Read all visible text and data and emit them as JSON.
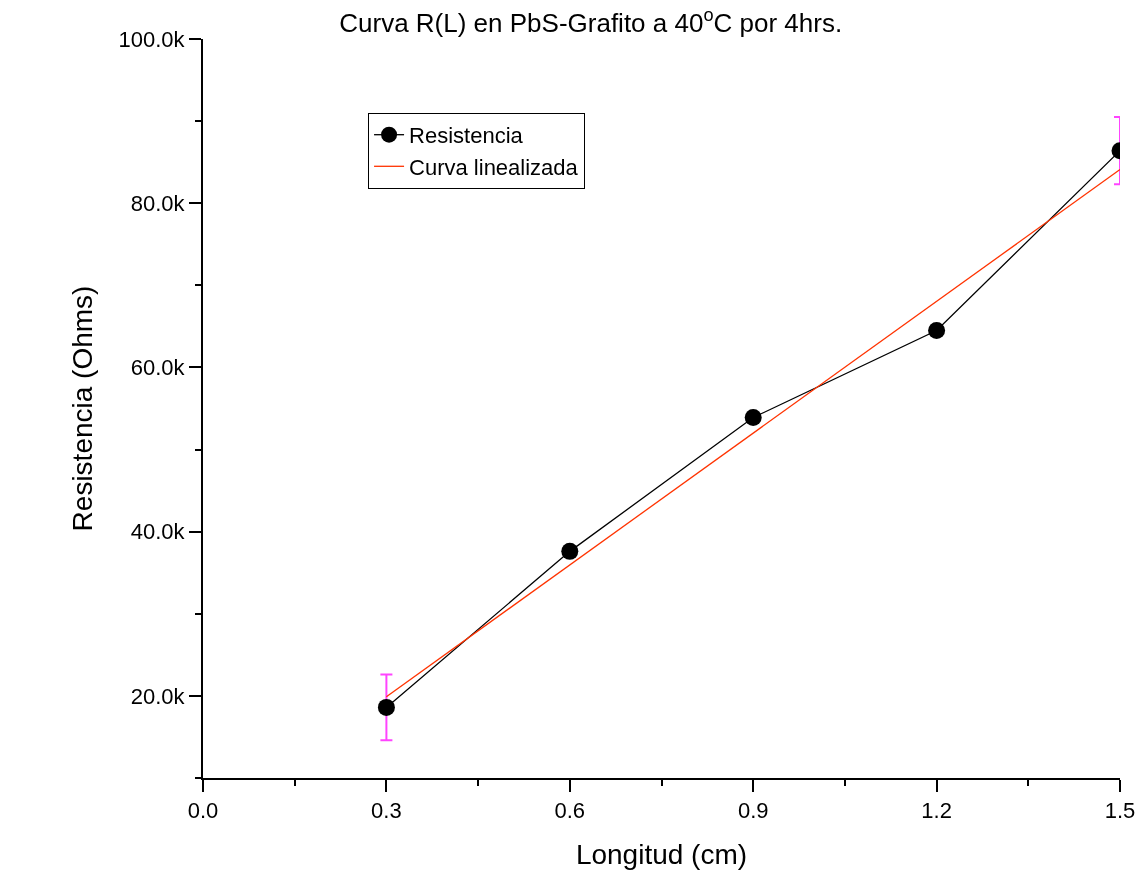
{
  "chart_data": {
    "type": "line",
    "title": "Curva R(L) en PbS-Grafito a 40$^{o}$C por 4hrs.",
    "xlabel": "Longitud (cm)",
    "ylabel": "Resistencia (Ohms)",
    "x": [
      0.3,
      0.6,
      0.9,
      1.2,
      1.5
    ],
    "series": [
      {
        "name": "Resistencia",
        "color": "#000000",
        "values": [
          18600,
          37600,
          53900,
          64500,
          86400
        ],
        "errors": [
          4000,
          null,
          null,
          null,
          4100
        ],
        "marker": "circle"
      },
      {
        "name": "Curva linealizada",
        "type": "line",
        "color": "#ff3300",
        "x": [
          0.3,
          1.5
        ],
        "values": [
          19900,
          84100
        ],
        "marker": "none"
      }
    ],
    "xlim": [
      0,
      1.5
    ],
    "xticks": [
      {
        "value": 0,
        "label": "0.0"
      },
      0.3,
      0.6,
      0.9,
      1.2,
      1.5
    ],
    "ylim": [
      10000,
      100000
    ],
    "yticks": [
      {
        "value": 20000,
        "label": "20.0k"
      },
      {
        "value": 40000,
        "label": "40.0k"
      },
      {
        "value": 60000,
        "label": "60.0k"
      },
      {
        "value": 80000,
        "label": "80.0k"
      },
      {
        "value": 100000,
        "label": "100.0k"
      }
    ],
    "grid": false,
    "legend": "top left"
  }
}
